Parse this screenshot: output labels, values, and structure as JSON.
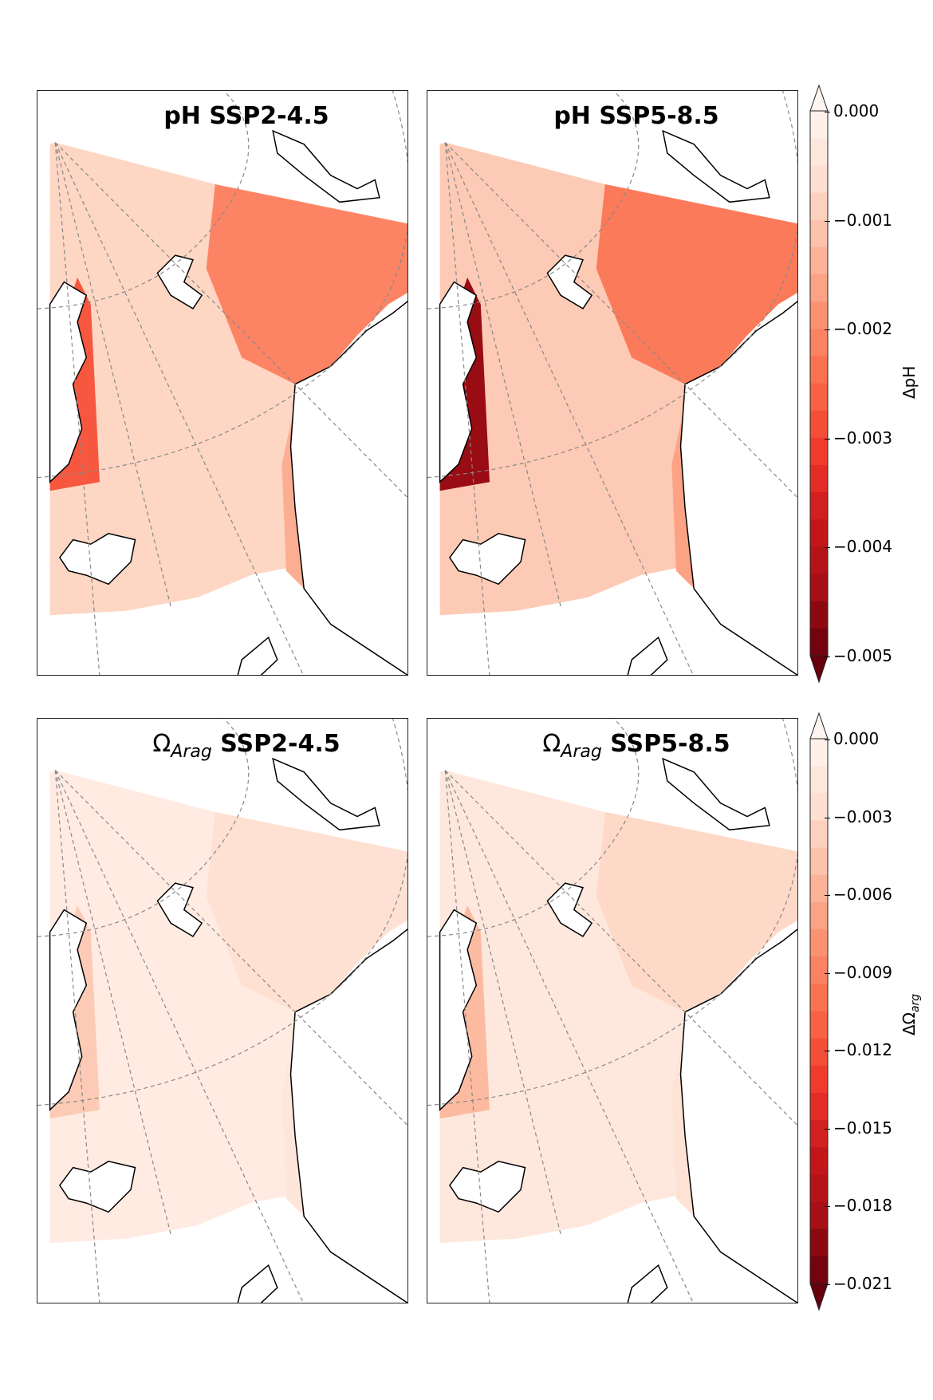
{
  "chart_data": [
    {
      "type": "heatmap",
      "title": "pH SSP2-4.5",
      "variable": "pH",
      "scenario": "SSP2-4.5",
      "colormap": "Reds_r",
      "colorbar_label": "ΔpH",
      "clim": [
        -0.005,
        0.0
      ],
      "colorbar_ticks": [
        "0.000",
        "−0.001",
        "−0.002",
        "−0.003",
        "−0.004",
        "−0.005"
      ],
      "typical_values": {
        "open_sea": -0.0008,
        "barents_sea": -0.002,
        "greenland_coast": -0.0025
      }
    },
    {
      "type": "heatmap",
      "title": "pH SSP5-8.5",
      "variable": "pH",
      "scenario": "SSP5-8.5",
      "colormap": "Reds_r",
      "colorbar_label": "ΔpH",
      "clim": [
        -0.005,
        0.0
      ],
      "colorbar_ticks": [
        "0.000",
        "−0.001",
        "−0.002",
        "−0.003",
        "−0.004",
        "−0.005"
      ],
      "typical_values": {
        "open_sea": -0.001,
        "barents_sea": -0.0022,
        "greenland_coast": -0.0045
      }
    },
    {
      "type": "heatmap",
      "title_symbol": "Ω",
      "title_sub": "Arag",
      "scenario": "SSP2-4.5",
      "colormap": "Reds_r",
      "colorbar_label": "ΔΩ",
      "colorbar_label_sub": "arg",
      "clim": [
        -0.021,
        0.0
      ],
      "colorbar_ticks": [
        "0.000",
        "−0.003",
        "−0.006",
        "−0.009",
        "−0.012",
        "−0.015",
        "−0.018",
        "−0.021"
      ],
      "typical_values": {
        "open_sea": -0.001,
        "barents_sea": -0.002,
        "greenland_coast": -0.004
      }
    },
    {
      "type": "heatmap",
      "title_symbol": "Ω",
      "title_sub": "Arag",
      "scenario": "SSP5-8.5",
      "colormap": "Reds_r",
      "colorbar_label": "ΔΩ",
      "colorbar_label_sub": "arg",
      "clim": [
        -0.021,
        0.0
      ],
      "colorbar_ticks": [
        "0.000",
        "−0.003",
        "−0.006",
        "−0.009",
        "−0.012",
        "−0.015",
        "−0.018",
        "−0.021"
      ],
      "typical_values": {
        "open_sea": -0.0015,
        "barents_sea": -0.0025,
        "greenland_coast": -0.005
      }
    }
  ],
  "colors": {
    "dark": "#67000d",
    "mid": "#ef3b2c",
    "light": "#fff5f0"
  }
}
